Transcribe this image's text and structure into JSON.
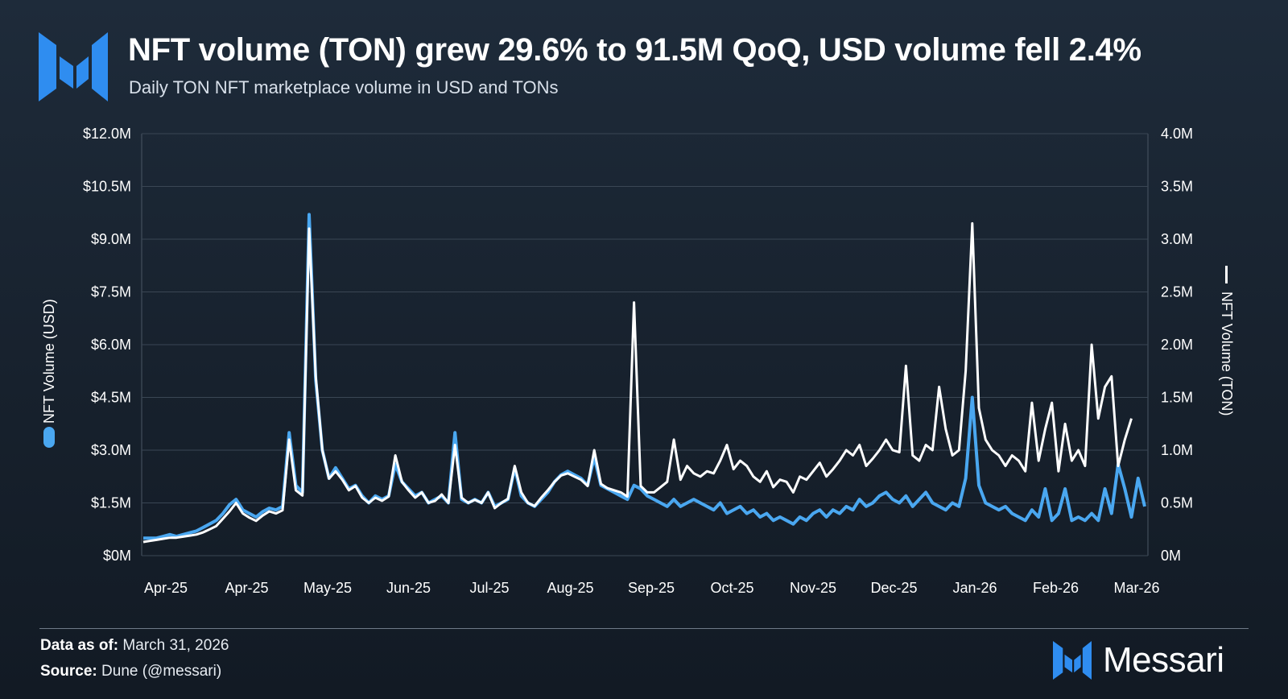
{
  "header": {
    "title": "NFT volume (TON) grew 29.6% to 91.5M QoQ, USD volume fell 2.4%",
    "subtitle": "Daily TON NFT marketplace volume in USD and TONs"
  },
  "footer": {
    "data_as_of_label": "Data as of:",
    "data_as_of_value": "March 31, 2026",
    "source_label": "Source:",
    "source_value": "Dune (@messari)",
    "brand_name": "Messari"
  },
  "colors": {
    "usd_series": "#4aa7f0",
    "ton_series": "#ffffff",
    "grid": "#3a4654",
    "brand": "#2f8df0"
  },
  "chart_data": {
    "type": "line",
    "x_tick_labels": [
      "Apr-25",
      "Apr-25",
      "May-25",
      "Jun-25",
      "Jul-25",
      "Aug-25",
      "Sep-25",
      "Oct-25",
      "Nov-25",
      "Dec-25",
      "Jan-26",
      "Feb-26",
      "Mar-26"
    ],
    "y_left": {
      "label": "NFT Volume (USD)",
      "range": [
        0,
        12000000
      ],
      "tick_labels": [
        "$0M",
        "$1.5M",
        "$3.0M",
        "$4.5M",
        "$6.0M",
        "$7.5M",
        "$9.0M",
        "$10.5M",
        "$12.0M"
      ]
    },
    "y_right": {
      "label": "NFT Volume (TON)",
      "range": [
        0,
        4000000
      ],
      "tick_labels": [
        "0M",
        "0.5M",
        "1.0M",
        "1.5M",
        "2.0M",
        "2.5M",
        "3.0M",
        "3.5M",
        "4.0M"
      ]
    },
    "grid": true,
    "series": [
      {
        "name": "NFT Volume (USD)",
        "axis": "left",
        "color": "#4aa7f0",
        "values": [
          0.5,
          0.5,
          0.5,
          0.55,
          0.6,
          0.55,
          0.6,
          0.65,
          0.7,
          0.8,
          0.9,
          1.0,
          1.2,
          1.45,
          1.6,
          1.3,
          1.2,
          1.1,
          1.25,
          1.35,
          1.3,
          1.4,
          3.5,
          2.0,
          1.8,
          9.7,
          5.0,
          3.0,
          2.2,
          2.5,
          2.2,
          1.9,
          2.0,
          1.7,
          1.5,
          1.7,
          1.6,
          1.7,
          2.6,
          2.1,
          1.9,
          1.7,
          1.8,
          1.5,
          1.6,
          1.7,
          1.5,
          3.5,
          1.6,
          1.5,
          1.6,
          1.5,
          1.8,
          1.4,
          1.5,
          1.6,
          2.5,
          1.7,
          1.5,
          1.4,
          1.6,
          1.8,
          2.1,
          2.3,
          2.4,
          2.3,
          2.2,
          2.0,
          2.8,
          2.0,
          1.9,
          1.8,
          1.7,
          1.6,
          2.0,
          1.9,
          1.7,
          1.6,
          1.5,
          1.4,
          1.6,
          1.4,
          1.5,
          1.6,
          1.5,
          1.4,
          1.3,
          1.5,
          1.2,
          1.3,
          1.4,
          1.2,
          1.3,
          1.1,
          1.2,
          1.0,
          1.1,
          1.0,
          0.9,
          1.1,
          1.0,
          1.2,
          1.3,
          1.1,
          1.3,
          1.2,
          1.4,
          1.3,
          1.6,
          1.4,
          1.5,
          1.7,
          1.8,
          1.6,
          1.5,
          1.7,
          1.4,
          1.6,
          1.8,
          1.5,
          1.4,
          1.3,
          1.5,
          1.4,
          2.2,
          4.5,
          2.0,
          1.5,
          1.4,
          1.3,
          1.4,
          1.2,
          1.1,
          1.0,
          1.3,
          1.1,
          1.9,
          1.0,
          1.2,
          1.9,
          1.0,
          1.1,
          1.0,
          1.2,
          1.0,
          1.9,
          1.2,
          2.6,
          1.9,
          1.1,
          2.2,
          1.4
        ]
      },
      {
        "name": "NFT Volume (TON)",
        "axis": "right",
        "color": "#ffffff",
        "values": [
          0.13,
          0.14,
          0.15,
          0.16,
          0.17,
          0.17,
          0.18,
          0.19,
          0.2,
          0.22,
          0.25,
          0.28,
          0.35,
          0.42,
          0.5,
          0.4,
          0.36,
          0.33,
          0.38,
          0.42,
          0.4,
          0.43,
          1.1,
          0.62,
          0.57,
          3.1,
          1.7,
          1.0,
          0.73,
          0.8,
          0.72,
          0.62,
          0.66,
          0.55,
          0.5,
          0.55,
          0.52,
          0.56,
          0.95,
          0.7,
          0.62,
          0.55,
          0.6,
          0.5,
          0.52,
          0.58,
          0.5,
          1.05,
          0.55,
          0.5,
          0.53,
          0.5,
          0.6,
          0.45,
          0.5,
          0.54,
          0.85,
          0.6,
          0.5,
          0.47,
          0.55,
          0.62,
          0.7,
          0.76,
          0.78,
          0.75,
          0.72,
          0.66,
          1.0,
          0.68,
          0.64,
          0.62,
          0.6,
          0.56,
          2.4,
          0.66,
          0.6,
          0.6,
          0.65,
          0.7,
          1.1,
          0.72,
          0.85,
          0.78,
          0.75,
          0.8,
          0.78,
          0.9,
          1.05,
          0.82,
          0.9,
          0.85,
          0.75,
          0.7,
          0.8,
          0.65,
          0.72,
          0.7,
          0.6,
          0.75,
          0.72,
          0.8,
          0.88,
          0.75,
          0.82,
          0.9,
          1.0,
          0.95,
          1.05,
          0.85,
          0.92,
          1.0,
          1.1,
          1.0,
          0.98,
          1.8,
          0.95,
          0.9,
          1.05,
          1.0,
          1.6,
          1.2,
          0.95,
          1.0,
          1.75,
          3.15,
          1.4,
          1.1,
          1.0,
          0.95,
          0.85,
          0.95,
          0.9,
          0.8,
          1.45,
          0.9,
          1.2,
          1.45,
          0.8,
          1.25,
          0.9,
          1.0,
          0.85,
          2.0,
          1.3,
          1.6,
          1.7,
          0.85,
          1.1,
          1.3
        ]
      }
    ]
  }
}
